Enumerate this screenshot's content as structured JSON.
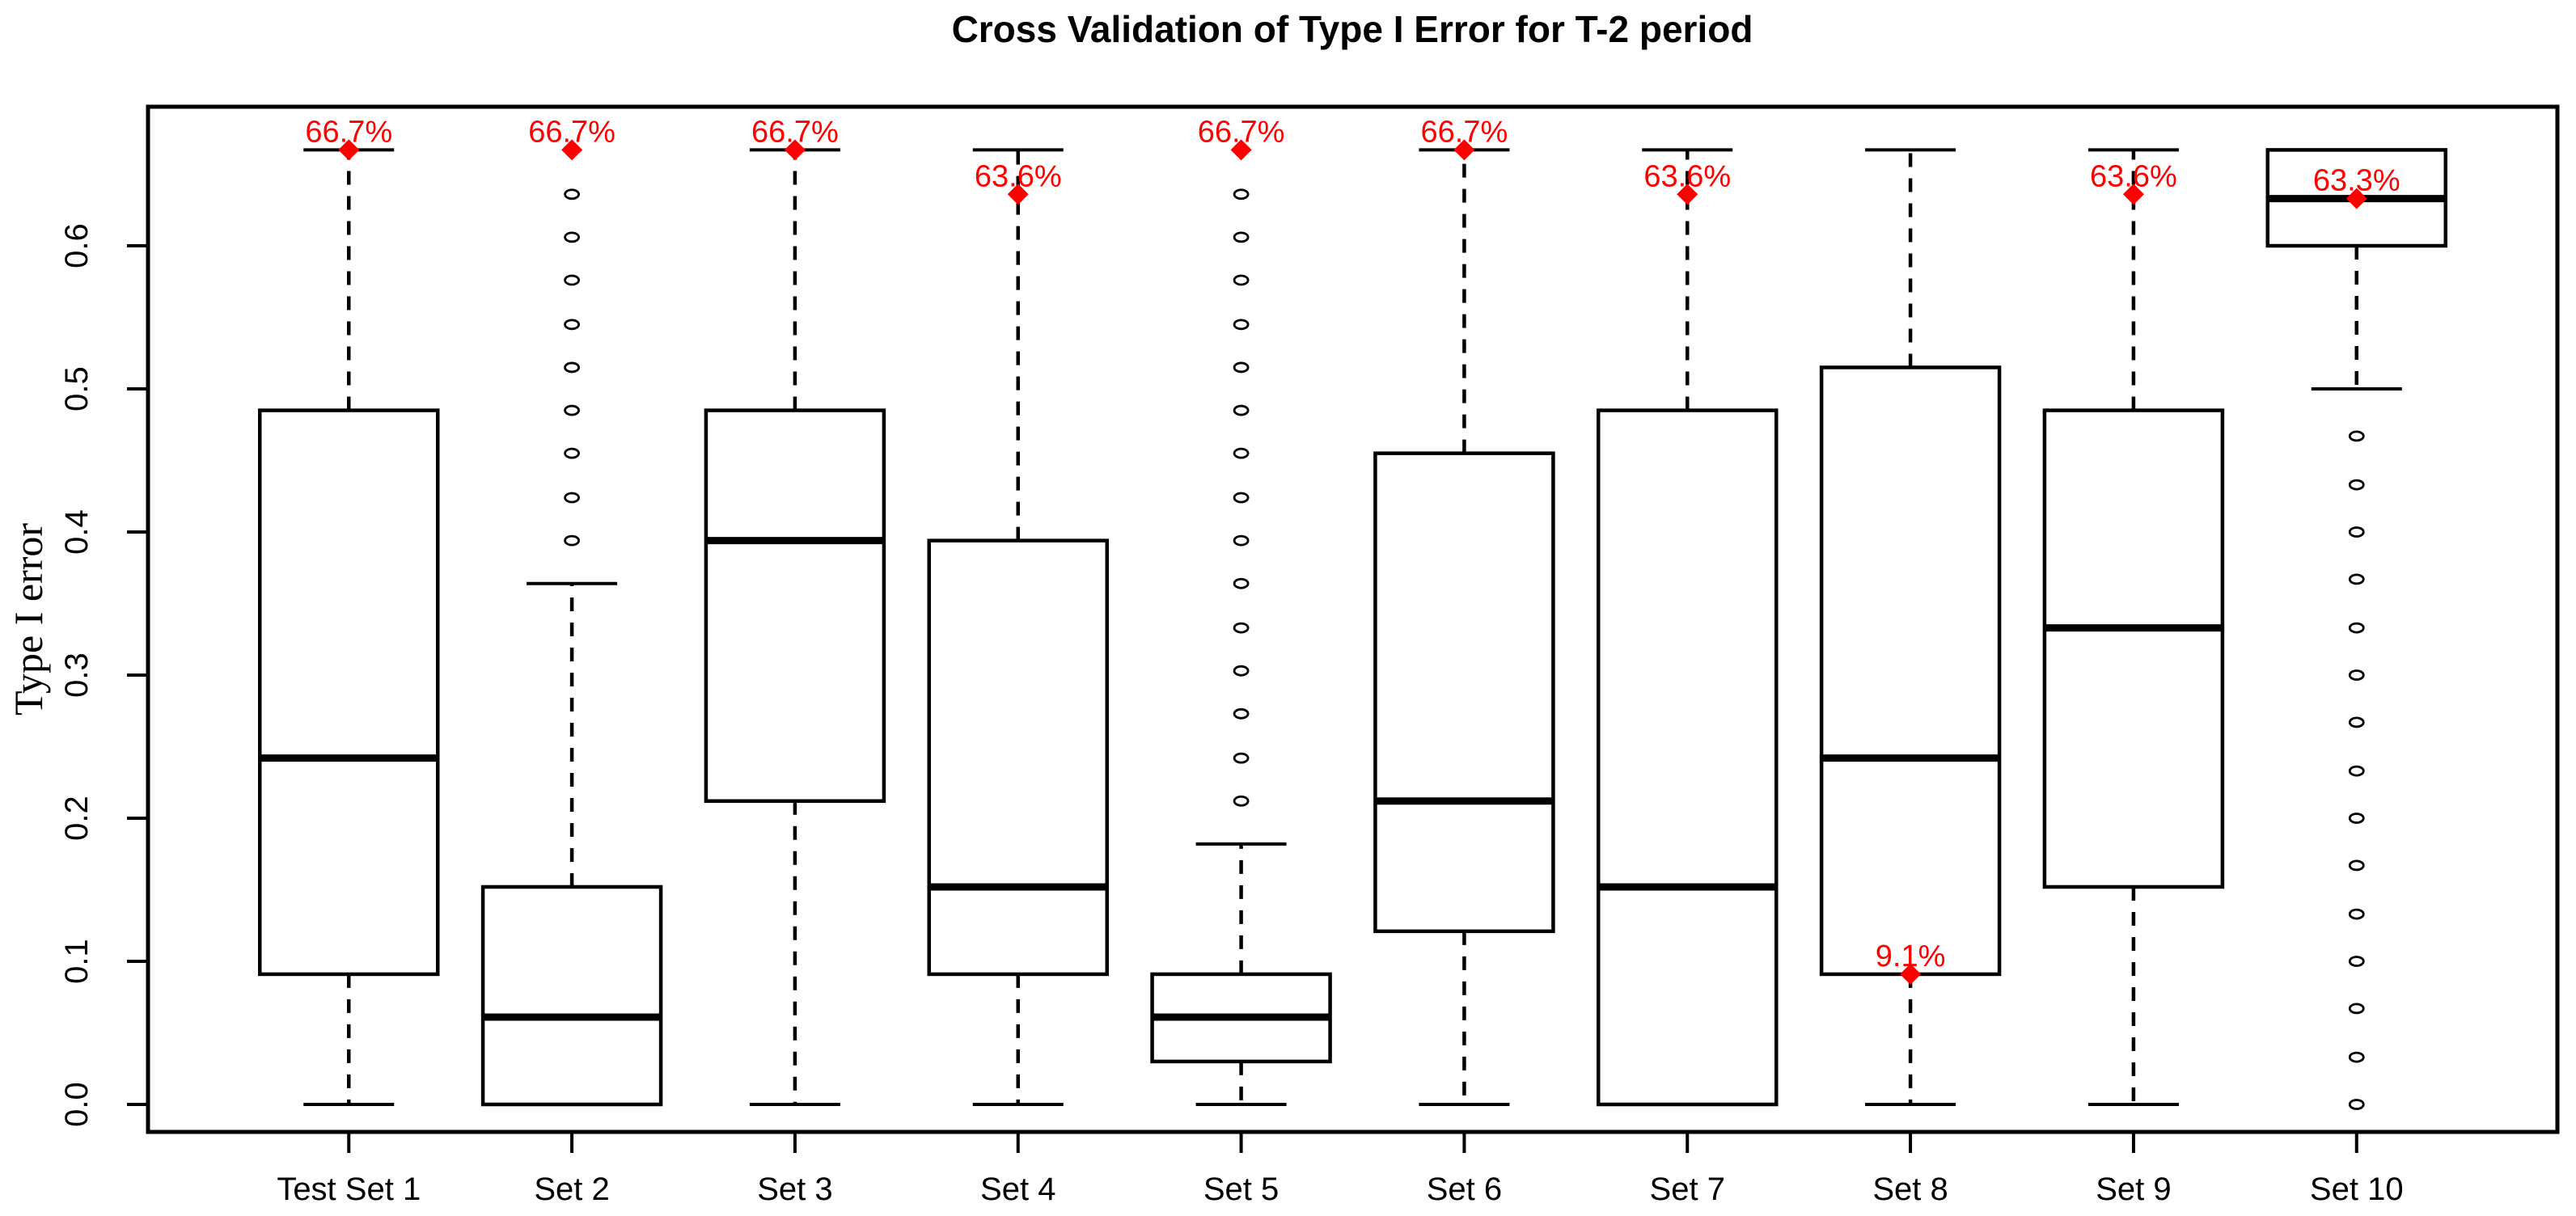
{
  "chart_data": {
    "type": "boxplot",
    "title": "Cross Validation of Type I Error for T-2 period",
    "ylabel": "Type I error",
    "ylim": [
      0,
      0.693
    ],
    "grid": false,
    "legend": null,
    "y_ticks": [
      "0.0",
      "0.1",
      "0.2",
      "0.3",
      "0.4",
      "0.5",
      "0.6"
    ],
    "y_tick_values": [
      0.0,
      0.1,
      0.2,
      0.3,
      0.4,
      0.5,
      0.6
    ],
    "line_color": "#000000",
    "annotation_color": "#ff0000",
    "categories": [
      "Test Set 1",
      "Set 2",
      "Set 3",
      "Set 4",
      "Set 5",
      "Set 6",
      "Set 7",
      "Set 8",
      "Set 9",
      "Set 10"
    ],
    "boxes": [
      {
        "label": "Test Set 1",
        "whisker_low": 0.0,
        "q1": 0.091,
        "median": 0.242,
        "q3": 0.485,
        "whisker_high": 0.667,
        "outliers": [],
        "annotation": {
          "value": 0.667,
          "text": "66.7%"
        }
      },
      {
        "label": "Set 2",
        "whisker_low": null,
        "q1": 0.0,
        "median": 0.061,
        "q3": 0.152,
        "whisker_high": 0.364,
        "outliers": [
          0.394,
          0.424,
          0.455,
          0.485,
          0.515,
          0.545,
          0.576,
          0.606,
          0.636
        ],
        "annotation": {
          "value": 0.667,
          "text": "66.7%"
        }
      },
      {
        "label": "Set 3",
        "whisker_low": 0.0,
        "q1": 0.212,
        "median": 0.394,
        "q3": 0.485,
        "whisker_high": 0.667,
        "outliers": [],
        "annotation": {
          "value": 0.667,
          "text": "66.7%"
        }
      },
      {
        "label": "Set 4",
        "whisker_low": 0.0,
        "q1": 0.091,
        "median": 0.152,
        "q3": 0.394,
        "whisker_high": 0.667,
        "outliers": [],
        "annotation": {
          "value": 0.636,
          "text": "63.6%"
        }
      },
      {
        "label": "Set 5",
        "whisker_low": 0.0,
        "q1": 0.03,
        "median": 0.061,
        "q3": 0.091,
        "whisker_high": 0.182,
        "outliers": [
          0.212,
          0.242,
          0.273,
          0.303,
          0.333,
          0.364,
          0.394,
          0.424,
          0.455,
          0.485,
          0.515,
          0.545,
          0.576,
          0.606,
          0.636
        ],
        "annotation": {
          "value": 0.667,
          "text": "66.7%"
        }
      },
      {
        "label": "Set 6",
        "whisker_low": 0.0,
        "q1": 0.121,
        "median": 0.212,
        "q3": 0.455,
        "whisker_high": 0.667,
        "outliers": [],
        "annotation": {
          "value": 0.667,
          "text": "66.7%"
        }
      },
      {
        "label": "Set 7",
        "whisker_low": null,
        "q1": 0.0,
        "median": 0.152,
        "q3": 0.485,
        "whisker_high": 0.667,
        "outliers": [],
        "annotation": {
          "value": 0.636,
          "text": "63.6%"
        }
      },
      {
        "label": "Set 8",
        "whisker_low": 0.0,
        "q1": 0.091,
        "median": 0.242,
        "q3": 0.515,
        "whisker_high": 0.667,
        "outliers": [],
        "annotation": {
          "value": 0.091,
          "text": "9.1%"
        }
      },
      {
        "label": "Set 9",
        "whisker_low": 0.0,
        "q1": 0.152,
        "median": 0.333,
        "q3": 0.485,
        "whisker_high": 0.667,
        "outliers": [],
        "annotation": {
          "value": 0.636,
          "text": "63.6%"
        }
      },
      {
        "label": "Set 10",
        "whisker_low": 0.5,
        "q1": 0.6,
        "median": 0.633,
        "q3": 0.667,
        "whisker_high": null,
        "outliers": [
          0.467,
          0.433,
          0.4,
          0.367,
          0.333,
          0.3,
          0.267,
          0.233,
          0.2,
          0.167,
          0.133,
          0.1,
          0.067,
          0.033,
          0.0
        ],
        "annotation": {
          "value": 0.633,
          "text": "63.3%"
        }
      }
    ]
  }
}
